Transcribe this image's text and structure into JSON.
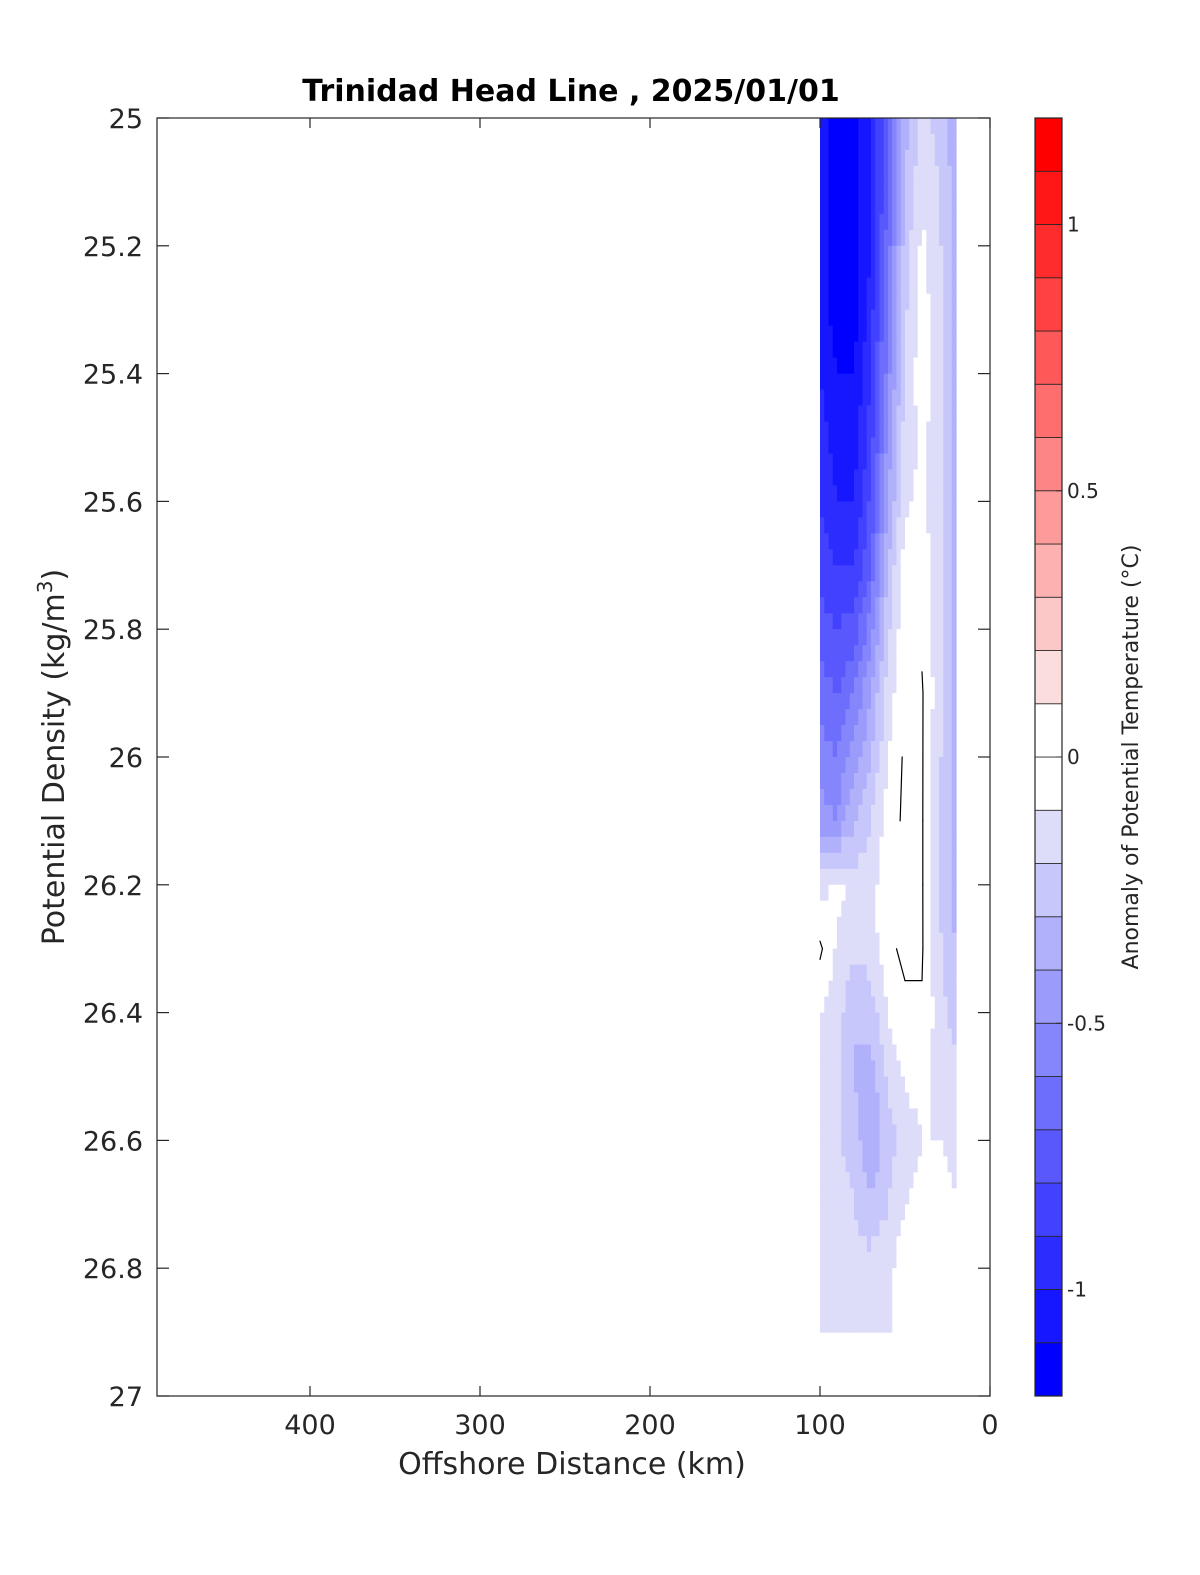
{
  "chart_data": {
    "type": "heatmap",
    "title": "Trinidad Head Line , 2025/01/01",
    "xlabel": "Offshore Distance (km)",
    "ylabel_main": "Potential Density (kg/m",
    "ylabel_sup": "3",
    "ylabel_close": ")",
    "xlim": [
      490,
      0
    ],
    "ylim": [
      27,
      25
    ],
    "x_reversed": true,
    "y_reversed": true,
    "x_ticks": [
      400,
      300,
      200,
      100,
      0
    ],
    "x_tick_labels": [
      "400",
      "300",
      "200",
      "100",
      "0"
    ],
    "y_ticks": [
      25,
      25.2,
      25.4,
      25.6,
      25.8,
      26,
      26.2,
      26.4,
      26.6,
      26.8,
      27
    ],
    "y_tick_labels": [
      "25",
      "25.2",
      "25.4",
      "25.6",
      "25.8",
      "26",
      "26.2",
      "26.4",
      "26.6",
      "26.8",
      "27"
    ],
    "data_extent": {
      "x": [
        20,
        100
      ],
      "y": [
        25,
        26.9
      ]
    },
    "x": [
      100,
      90,
      80,
      70,
      60,
      50,
      40,
      30,
      20
    ],
    "y": [
      25.0,
      25.1,
      25.2,
      25.3,
      25.4,
      25.5,
      25.6,
      25.7,
      25.8,
      25.9,
      26.0,
      26.1,
      26.2,
      26.3,
      26.4,
      26.5,
      26.6,
      26.7,
      26.8,
      26.9
    ],
    "z": [
      [
        -1.05,
        -1.15,
        -1.15,
        -1.0,
        -0.7,
        -0.35,
        -0.15,
        -0.25,
        -0.35
      ],
      [
        -1.05,
        -1.15,
        -1.15,
        -1.0,
        -0.7,
        -0.3,
        -0.12,
        -0.2,
        -0.35
      ],
      [
        -1.05,
        -1.15,
        -1.15,
        -1.0,
        -0.65,
        -0.25,
        -0.08,
        -0.18,
        -0.35
      ],
      [
        -1.05,
        -1.15,
        -1.15,
        -0.95,
        -0.6,
        -0.22,
        -0.05,
        -0.16,
        -0.35
      ],
      [
        -1.0,
        -1.1,
        -1.1,
        -0.9,
        -0.55,
        -0.2,
        -0.03,
        -0.15,
        -0.35
      ],
      [
        -0.95,
        -1.05,
        -1.05,
        -0.85,
        -0.48,
        -0.15,
        -0.08,
        -0.16,
        -0.35
      ],
      [
        -0.9,
        -1.0,
        -1.0,
        -0.78,
        -0.4,
        -0.12,
        -0.08,
        -0.16,
        -0.35
      ],
      [
        -0.85,
        -0.9,
        -0.9,
        -0.7,
        -0.3,
        -0.05,
        -0.05,
        -0.16,
        -0.35
      ],
      [
        -0.75,
        -0.8,
        -0.75,
        -0.55,
        -0.22,
        -0.02,
        -0.02,
        -0.16,
        -0.35
      ],
      [
        -0.65,
        -0.7,
        -0.6,
        -0.4,
        -0.15,
        0.0,
        0.01,
        -0.16,
        -0.35
      ],
      [
        -0.55,
        -0.6,
        -0.45,
        -0.3,
        -0.1,
        0.02,
        0.01,
        -0.18,
        -0.35
      ],
      [
        -0.45,
        -0.5,
        -0.3,
        -0.2,
        -0.05,
        0.02,
        0.01,
        -0.2,
        -0.35
      ],
      [
        -0.15,
        -0.05,
        -0.15,
        -0.15,
        0.0,
        0.03,
        0.01,
        -0.2,
        -0.35
      ],
      [
        0.02,
        -0.12,
        -0.18,
        -0.15,
        -0.02,
        0.02,
        0.01,
        -0.18,
        -0.3
      ],
      [
        -0.1,
        -0.15,
        -0.3,
        -0.25,
        -0.1,
        -0.02,
        -0.01,
        -0.15,
        -0.25
      ],
      [
        -0.12,
        -0.18,
        -0.3,
        -0.35,
        -0.18,
        -0.08,
        -0.08,
        -0.12,
        -0.15
      ],
      [
        -0.12,
        -0.18,
        -0.25,
        -0.4,
        -0.25,
        -0.15,
        -0.1,
        -0.1,
        -0.12
      ],
      [
        -0.1,
        -0.15,
        -0.2,
        -0.3,
        -0.2,
        -0.1,
        -0.05,
        -0.05,
        -0.1
      ],
      [
        -0.12,
        -0.12,
        -0.15,
        -0.15,
        -0.12,
        -0.05,
        -0.02,
        -0.05,
        -0.05
      ],
      [
        -0.12,
        -0.12,
        -0.12,
        -0.12,
        -0.12,
        -0.05,
        -0.02,
        -0.05,
        -0.05
      ]
    ],
    "contour_level": 0,
    "colorbar": {
      "label": "Anomaly of Potential Temperature (°C)",
      "range": [
        -1.2,
        1.2
      ],
      "step": 0.1,
      "ticks": [
        1,
        0.5,
        0,
        -0.5,
        -1
      ],
      "tick_labels": [
        "1",
        "0.5",
        "0",
        "-0.5",
        "-1"
      ],
      "neg_color": "#0000ff",
      "pos_color": "#ff0000",
      "zero_color": "#ffffff"
    }
  }
}
